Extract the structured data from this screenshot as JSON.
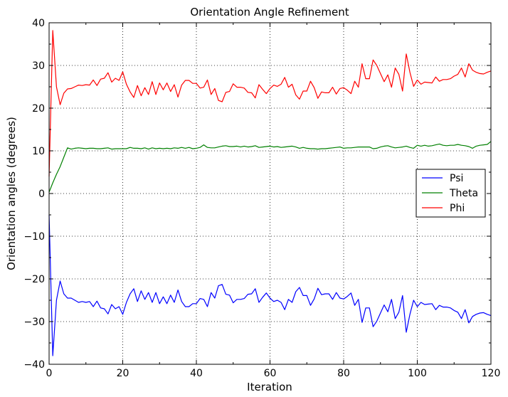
{
  "chart_data": {
    "type": "line",
    "title": "Orientation Angle Refinement",
    "xlabel": "Iteration",
    "ylabel": "Orientation angles (degrees)",
    "xlim": [
      0,
      120
    ],
    "ylim": [
      -40,
      40
    ],
    "xticks": [
      "0",
      "20",
      "40",
      "60",
      "80",
      "100",
      "120"
    ],
    "yticks": [
      "−40",
      "−30",
      "−20",
      "−10",
      "0",
      "10",
      "20",
      "30",
      "40"
    ],
    "grid": true,
    "legend_position": "center-right",
    "series": [
      {
        "name": "Psi",
        "color": "#0000ff",
        "x": [
          0,
          1,
          2,
          3,
          4,
          5,
          6,
          7,
          8,
          9,
          10,
          11,
          12,
          13,
          14,
          15,
          16,
          17,
          18,
          19,
          20,
          21,
          22,
          23,
          24,
          25,
          26,
          27,
          28,
          29,
          30,
          31,
          32,
          33,
          34,
          35,
          36,
          37,
          38,
          39,
          40,
          41,
          42,
          43,
          44,
          45,
          46,
          47,
          48,
          49,
          50,
          51,
          52,
          53,
          54,
          55,
          56,
          57,
          58,
          59,
          60,
          61,
          62,
          63,
          64,
          65,
          66,
          67,
          68,
          69,
          70,
          71,
          72,
          73,
          74,
          75,
          76,
          77,
          78,
          79,
          80,
          81,
          82,
          83,
          84,
          85,
          86,
          87,
          88,
          89,
          90,
          91,
          92,
          93,
          94,
          95,
          96,
          97,
          98,
          99,
          100,
          101,
          102,
          103,
          104,
          105,
          106,
          107,
          108,
          109,
          110,
          111,
          112,
          113,
          114,
          115,
          116,
          117,
          118,
          119,
          120
        ],
        "values": [
          -5,
          -38,
          -25,
          -20.5,
          -23.5,
          -24.5,
          -24.5,
          -25,
          -25.5,
          -25.3,
          -25.5,
          -25.3,
          -26.5,
          -25.2,
          -26.8,
          -27,
          -28.2,
          -26,
          -27,
          -26.5,
          -28.3,
          -25.5,
          -23.5,
          -22.3,
          -25.3,
          -22.8,
          -24.8,
          -23.2,
          -25.5,
          -23.2,
          -25.8,
          -24.2,
          -25.8,
          -23.8,
          -25.5,
          -22.6,
          -25.3,
          -26.5,
          -26.5,
          -25.8,
          -25.8,
          -24.6,
          -24.8,
          -26.5,
          -23.2,
          -24.5,
          -21.6,
          -21.3,
          -23.6,
          -23.8,
          -25.6,
          -24.8,
          -24.8,
          -24.6,
          -23.6,
          -23.5,
          -22.3,
          -25.5,
          -24.3,
          -23.3,
          -24.5,
          -25.3,
          -25,
          -25.5,
          -27.2,
          -24.8,
          -25.5,
          -23,
          -22,
          -23.9,
          -23.9,
          -26.2,
          -24.7,
          -22.2,
          -23.7,
          -23.5,
          -23.5,
          -24.8,
          -23.2,
          -24.5,
          -24.7,
          -24.1,
          -23.3,
          -26.2,
          -24.8,
          -30.2,
          -26.8,
          -26.8,
          -31.2,
          -29.9,
          -28,
          -26.1,
          -27.7,
          -24.8,
          -29.3,
          -27.8,
          -23.9,
          -32.5,
          -28.3,
          -25,
          -26.5,
          -25.5,
          -26,
          -25.9,
          -25.8,
          -27.2,
          -26.2,
          -26.6,
          -26.6,
          -26.8,
          -27.4,
          -27.8,
          -29.3,
          -27.2,
          -30.3,
          -28.8,
          -28.3,
          -28,
          -27.9,
          -28.3,
          -28.6
        ]
      },
      {
        "name": "Theta",
        "color": "#008000",
        "x": [
          0,
          1,
          2,
          3,
          4,
          5,
          6,
          7,
          8,
          9,
          10,
          11,
          12,
          13,
          14,
          15,
          16,
          17,
          18,
          19,
          20,
          21,
          22,
          23,
          24,
          25,
          26,
          27,
          28,
          29,
          30,
          31,
          32,
          33,
          34,
          35,
          36,
          37,
          38,
          39,
          40,
          41,
          42,
          43,
          44,
          45,
          46,
          47,
          48,
          49,
          50,
          51,
          52,
          53,
          54,
          55,
          56,
          57,
          58,
          59,
          60,
          61,
          62,
          63,
          64,
          65,
          66,
          67,
          68,
          69,
          70,
          71,
          72,
          73,
          74,
          75,
          76,
          77,
          78,
          79,
          80,
          81,
          82,
          83,
          84,
          85,
          86,
          87,
          88,
          89,
          90,
          91,
          92,
          93,
          94,
          95,
          96,
          97,
          98,
          99,
          100,
          101,
          102,
          103,
          104,
          105,
          106,
          107,
          108,
          109,
          110,
          111,
          112,
          113,
          114,
          115,
          116,
          117,
          118,
          119,
          120
        ],
        "values": [
          0.3,
          2.5,
          4.5,
          6.3,
          8.5,
          10.7,
          10.4,
          10.6,
          10.7,
          10.6,
          10.5,
          10.6,
          10.6,
          10.5,
          10.5,
          10.6,
          10.7,
          10.4,
          10.5,
          10.5,
          10.5,
          10.5,
          10.8,
          10.6,
          10.6,
          10.5,
          10.7,
          10.4,
          10.7,
          10.5,
          10.6,
          10.5,
          10.6,
          10.5,
          10.7,
          10.6,
          10.8,
          10.6,
          10.8,
          10.5,
          10.6,
          10.8,
          11.4,
          10.8,
          10.7,
          10.7,
          10.9,
          11.1,
          11.2,
          11,
          11,
          11.1,
          10.9,
          11.1,
          10.9,
          11,
          11.2,
          10.8,
          10.9,
          11,
          11.1,
          10.9,
          11,
          10.8,
          10.9,
          11,
          11.1,
          10.9,
          10.6,
          10.8,
          10.6,
          10.5,
          10.5,
          10.4,
          10.5,
          10.5,
          10.6,
          10.7,
          10.8,
          10.9,
          10.6,
          10.7,
          10.7,
          10.8,
          10.9,
          10.9,
          10.9,
          10.9,
          10.5,
          10.6,
          10.9,
          11.1,
          11.2,
          10.9,
          10.7,
          10.8,
          10.9,
          11.1,
          10.8,
          10.6,
          11.3,
          11.1,
          11.3,
          11.1,
          11.2,
          11.4,
          11.6,
          11.3,
          11.2,
          11.3,
          11.3,
          11.5,
          11.3,
          11.2,
          11,
          10.6,
          11.1,
          11.3,
          11.4,
          11.5,
          12.2
        ]
      },
      {
        "name": "Phi",
        "color": "#ff0000",
        "x": [
          0,
          1,
          2,
          3,
          4,
          5,
          6,
          7,
          8,
          9,
          10,
          11,
          12,
          13,
          14,
          15,
          16,
          17,
          18,
          19,
          20,
          21,
          22,
          23,
          24,
          25,
          26,
          27,
          28,
          29,
          30,
          31,
          32,
          33,
          34,
          35,
          36,
          37,
          38,
          39,
          40,
          41,
          42,
          43,
          44,
          45,
          46,
          47,
          48,
          49,
          50,
          51,
          52,
          53,
          54,
          55,
          56,
          57,
          58,
          59,
          60,
          61,
          62,
          63,
          64,
          65,
          66,
          67,
          68,
          69,
          70,
          71,
          72,
          73,
          74,
          75,
          76,
          77,
          78,
          79,
          80,
          81,
          82,
          83,
          84,
          85,
          86,
          87,
          88,
          89,
          90,
          91,
          92,
          93,
          94,
          95,
          96,
          97,
          98,
          99,
          100,
          101,
          102,
          103,
          104,
          105,
          106,
          107,
          108,
          109,
          110,
          111,
          112,
          113,
          114,
          115,
          116,
          117,
          118,
          119,
          120
        ],
        "values": [
          4,
          38.2,
          25,
          20.8,
          23.5,
          24.5,
          24.6,
          25,
          25.4,
          25.3,
          25.5,
          25.4,
          26.6,
          25.3,
          26.8,
          27,
          28.3,
          26.1,
          27,
          26.5,
          28.5,
          25.6,
          23.8,
          22.5,
          25.3,
          22.9,
          24.8,
          23.2,
          26.2,
          23.2,
          25.9,
          24.3,
          25.9,
          23.9,
          25.5,
          22.6,
          25.4,
          26.5,
          26.5,
          25.8,
          25.8,
          24.7,
          24.9,
          26.6,
          23.2,
          24.6,
          21.8,
          21.5,
          23.7,
          23.9,
          25.7,
          24.9,
          24.9,
          24.7,
          23.7,
          23.6,
          22.4,
          25.5,
          24.4,
          23.4,
          24.6,
          25.4,
          25.1,
          25.6,
          27.2,
          24.9,
          25.6,
          23.1,
          22.1,
          24,
          24,
          26.3,
          24.8,
          22.3,
          23.8,
          23.6,
          23.6,
          24.9,
          23.3,
          24.6,
          24.8,
          24.2,
          23.4,
          26.3,
          24.9,
          30.4,
          26.9,
          26.9,
          31.3,
          30,
          28.1,
          26.2,
          27.8,
          24.9,
          29.4,
          27.9,
          24,
          32.7,
          28.4,
          25.1,
          26.6,
          25.6,
          26.1,
          26,
          25.9,
          27.3,
          26.3,
          26.7,
          26.7,
          26.9,
          27.5,
          27.9,
          29.4,
          27.3,
          30.4,
          28.9,
          28.4,
          28.1,
          28,
          28.4,
          28.7
        ]
      }
    ]
  }
}
